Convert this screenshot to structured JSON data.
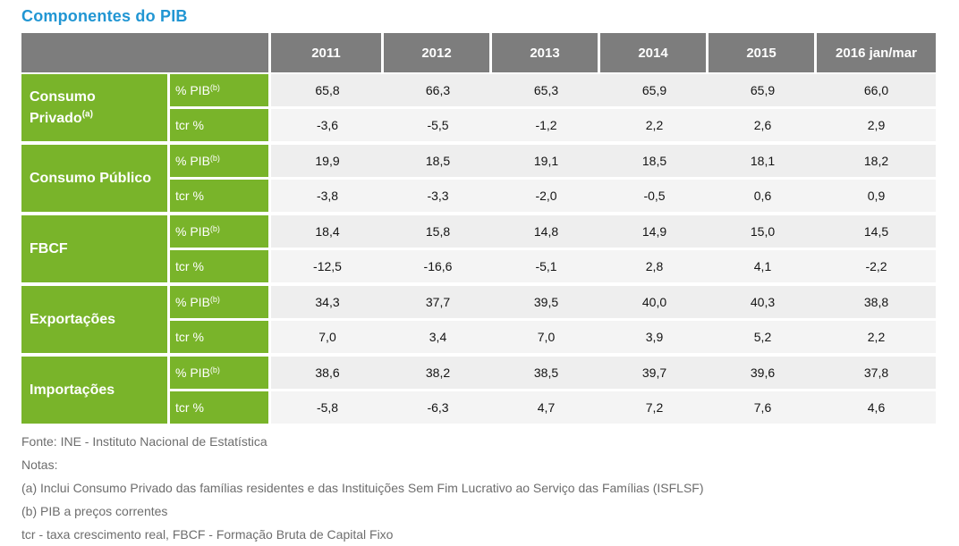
{
  "title": "Componentes do PIB",
  "colors": {
    "title_blue": "#2196d3",
    "header_gray": "#7d7d7d",
    "row_green": "#79b42a",
    "data_row_light": "#eeeeee",
    "data_row_lighter": "#f4f4f4",
    "notes_gray": "#6d6d6d"
  },
  "table": {
    "year_headers": [
      "2011",
      "2012",
      "2013",
      "2014",
      "2015",
      "2016 jan/mar"
    ],
    "metric_pib_label": "% PIB",
    "metric_pib_sup": "(b)",
    "metric_tcr_label": "tcr %",
    "metric_tcr_sup": "",
    "groups": [
      {
        "label": "Consumo Privado",
        "sup": "(a)",
        "pib": [
          "65,8",
          "66,3",
          "65,3",
          "65,9",
          "65,9",
          "66,0"
        ],
        "tcr": [
          "-3,6",
          "-5,5",
          "-1,2",
          "2,2",
          "2,6",
          "2,9"
        ]
      },
      {
        "label": "Consumo Público",
        "sup": "",
        "pib": [
          "19,9",
          "18,5",
          "19,1",
          "18,5",
          "18,1",
          "18,2"
        ],
        "tcr": [
          "-3,8",
          "-3,3",
          "-2,0",
          "-0,5",
          "0,6",
          "0,9"
        ]
      },
      {
        "label": "FBCF",
        "sup": "",
        "pib": [
          "18,4",
          "15,8",
          "14,8",
          "14,9",
          "15,0",
          "14,5"
        ],
        "tcr": [
          "-12,5",
          "-16,6",
          "-5,1",
          "2,8",
          "4,1",
          "-2,2"
        ]
      },
      {
        "label": "Exportações",
        "sup": "",
        "pib": [
          "34,3",
          "37,7",
          "39,5",
          "40,0",
          "40,3",
          "38,8"
        ],
        "tcr": [
          "7,0",
          "3,4",
          "7,0",
          "3,9",
          "5,2",
          "2,2"
        ]
      },
      {
        "label": "Importações",
        "sup": "",
        "pib": [
          "38,6",
          "38,2",
          "38,5",
          "39,7",
          "39,6",
          "37,8"
        ],
        "tcr": [
          "-5,8",
          "-6,3",
          "4,7",
          "7,2",
          "7,6",
          "4,6"
        ]
      }
    ]
  },
  "notes": {
    "fonte": "Fonte: INE - Instituto Nacional de Estatística",
    "notas": "Notas:",
    "note_a": "(a) Inclui Consumo Privado das famílias residentes e das Instituições Sem Fim Lucrativo ao Serviço das Famílias (ISFLSF)",
    "note_b": "(b) PIB a preços correntes",
    "note_tcr": "tcr - taxa crescimento real, FBCF - Formação Bruta de Capital Fixo"
  },
  "chart_data": {
    "type": "table",
    "title": "Componentes do PIB",
    "columns": [
      "2011",
      "2012",
      "2013",
      "2014",
      "2015",
      "2016 jan/mar"
    ],
    "rows": [
      {
        "component": "Consumo Privado",
        "metric": "% PIB",
        "values": [
          65.8,
          66.3,
          65.3,
          65.9,
          65.9,
          66.0
        ]
      },
      {
        "component": "Consumo Privado",
        "metric": "tcr %",
        "values": [
          -3.6,
          -5.5,
          -1.2,
          2.2,
          2.6,
          2.9
        ]
      },
      {
        "component": "Consumo Público",
        "metric": "% PIB",
        "values": [
          19.9,
          18.5,
          19.1,
          18.5,
          18.1,
          18.2
        ]
      },
      {
        "component": "Consumo Público",
        "metric": "tcr %",
        "values": [
          -3.8,
          -3.3,
          -2.0,
          -0.5,
          0.6,
          0.9
        ]
      },
      {
        "component": "FBCF",
        "metric": "% PIB",
        "values": [
          18.4,
          15.8,
          14.8,
          14.9,
          15.0,
          14.5
        ]
      },
      {
        "component": "FBCF",
        "metric": "tcr %",
        "values": [
          -12.5,
          -16.6,
          -5.1,
          2.8,
          4.1,
          -2.2
        ]
      },
      {
        "component": "Exportações",
        "metric": "% PIB",
        "values": [
          34.3,
          37.7,
          39.5,
          40.0,
          40.3,
          38.8
        ]
      },
      {
        "component": "Exportações",
        "metric": "tcr %",
        "values": [
          7.0,
          3.4,
          7.0,
          3.9,
          5.2,
          2.2
        ]
      },
      {
        "component": "Importações",
        "metric": "% PIB",
        "values": [
          38.6,
          38.2,
          38.5,
          39.7,
          39.6,
          37.8
        ]
      },
      {
        "component": "Importações",
        "metric": "tcr %",
        "values": [
          -5.8,
          -6.3,
          4.7,
          7.2,
          7.6,
          4.6
        ]
      }
    ]
  }
}
